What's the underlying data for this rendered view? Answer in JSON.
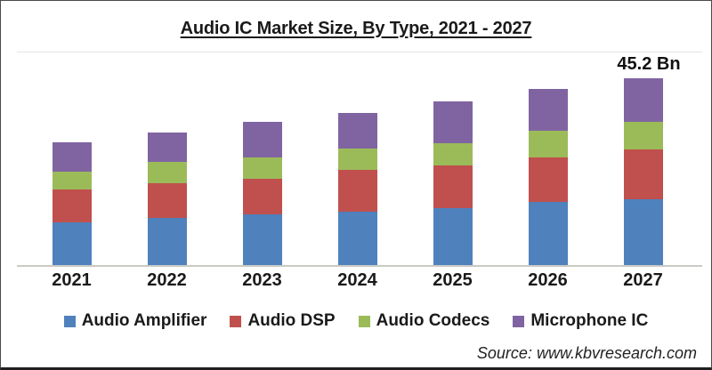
{
  "title": "Audio IC Market Size, By Type, 2021 - 2027",
  "annotation": {
    "label": "45.2 Bn"
  },
  "source_credit": "Source: www.kbvresearch.com",
  "colors": {
    "audio_amplifier": "#4F81BD",
    "audio_dsp": "#C0504D",
    "audio_codecs": "#9BBB59",
    "microphone_ic": "#8064A2",
    "axis_line": "#C9C9C6",
    "plot_top_line": "#E4E4E1",
    "frame_border": "#4A4A4A",
    "text": "#1A1A1A"
  },
  "chart_data": {
    "type": "bar",
    "stacked": true,
    "title": "Audio IC Market Size, By Type, 2021 - 2027",
    "unit": "Bn",
    "categories": [
      "2021",
      "2022",
      "2023",
      "2024",
      "2025",
      "2026",
      "2027"
    ],
    "series": [
      {
        "name": "Audio Amplifier",
        "color": "#4F81BD",
        "values": [
          10.3,
          11.4,
          12.3,
          12.9,
          13.7,
          15.2,
          16.0
        ]
      },
      {
        "name": "Audio DSP",
        "color": "#C0504D",
        "values": [
          8.0,
          8.4,
          8.6,
          10.1,
          10.4,
          10.9,
          12.1
        ]
      },
      {
        "name": "Audio Codecs",
        "color": "#9BBB59",
        "values": [
          4.4,
          5.1,
          5.2,
          5.3,
          5.3,
          6.4,
          6.6
        ]
      },
      {
        "name": "Microphone IC",
        "color": "#8064A2",
        "values": [
          7.1,
          7.2,
          8.6,
          8.5,
          10.3,
          10.1,
          10.5
        ]
      }
    ],
    "totals_bn": [
      29.8,
      32.1,
      34.7,
      36.8,
      39.7,
      42.6,
      45.2
    ],
    "annotations": [
      {
        "category": "2027",
        "text": "45.2 Bn"
      }
    ],
    "legend_position": "bottom",
    "grid": false,
    "y_axis_visible": false,
    "x_axis_visible": true,
    "ylim": [
      0,
      51.4
    ]
  }
}
